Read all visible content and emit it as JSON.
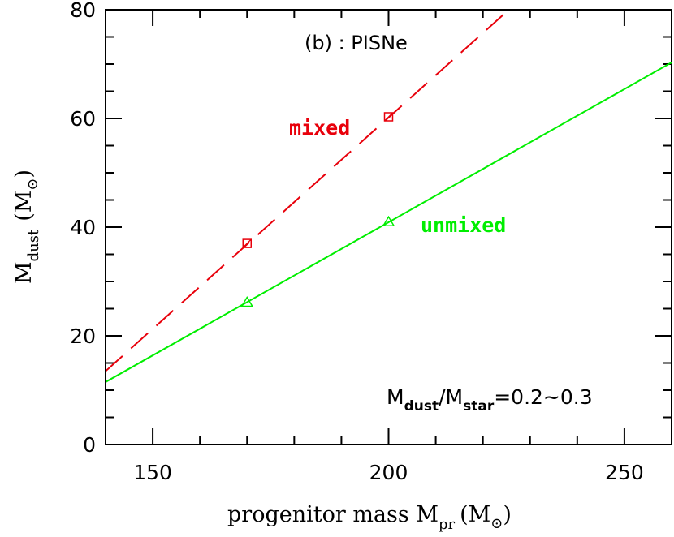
{
  "chart_data": {
    "type": "line",
    "title": "(b) : PISNe",
    "xlabel": {
      "main": "progenitor mass M",
      "sub": "pr",
      "unit_open": "(M",
      "unit_sub": "⊙",
      "unit_close": ")"
    },
    "ylabel": {
      "main": "M",
      "sub": "dust",
      "unit_open": "(M",
      "unit_sub": "⊙",
      "unit_close": ")"
    },
    "xlim": [
      140,
      260
    ],
    "ylim": [
      0,
      80
    ],
    "x_ticks": [
      150,
      200,
      250
    ],
    "y_ticks": [
      0,
      20,
      40,
      60,
      80
    ],
    "annotation": {
      "m": "M",
      "dust": "dust",
      "slash": "/M",
      "star": "star",
      "value": "=0.2~0.3"
    },
    "series": [
      {
        "name": "mixed",
        "color": "#e8000b",
        "style": "dashed",
        "marker": "square",
        "line_x": [
          140,
          225.5
        ],
        "line_y": [
          13.5,
          80
        ],
        "points": [
          {
            "x": 170,
            "y": 37
          },
          {
            "x": 200,
            "y": 60.3
          }
        ]
      },
      {
        "name": "unmixed",
        "color": "#00ee00",
        "style": "solid",
        "marker": "triangle",
        "line_x": [
          140,
          260
        ],
        "line_y": [
          11.5,
          70.3
        ],
        "points": [
          {
            "x": 170,
            "y": 26.2
          },
          {
            "x": 200,
            "y": 41
          }
        ]
      }
    ]
  }
}
